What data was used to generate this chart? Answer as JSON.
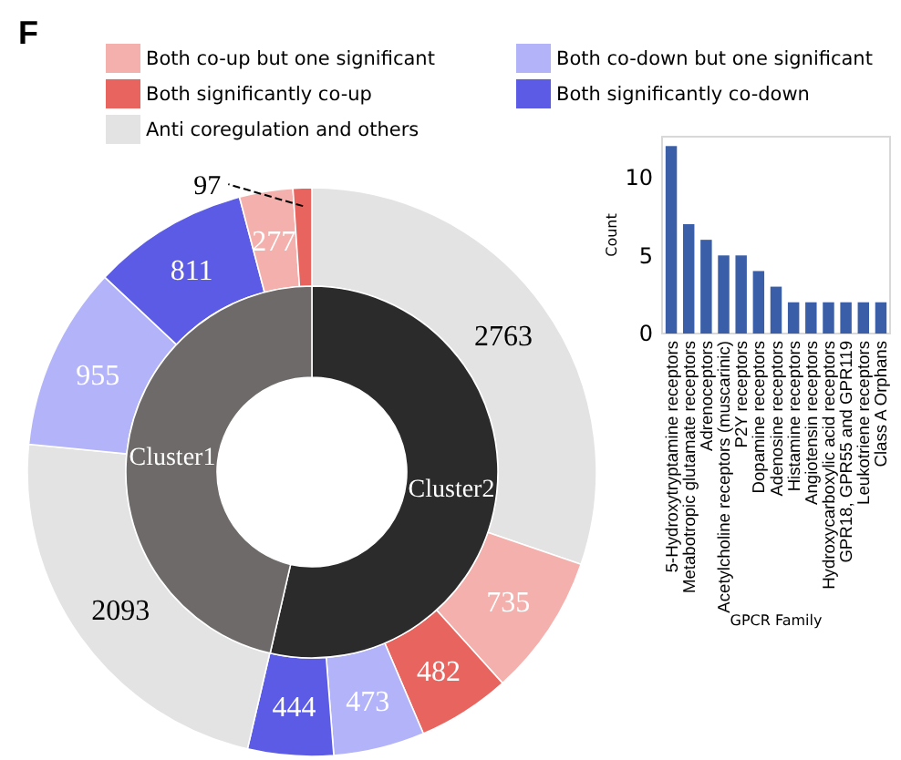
{
  "chart_data": [
    {
      "type": "donut",
      "annotations": [
        "F"
      ],
      "legend": "top",
      "data_labels": true,
      "categories": [
        "Anti coregulation and others",
        "Both co-up but one significant",
        "Both significantly co-up",
        "Both co-down but one significant",
        "Both significantly co-down",
        null,
        null,
        null,
        null,
        null
      ],
      "values": [
        2763,
        735,
        482,
        473,
        444,
        2093,
        955,
        811,
        277,
        97
      ],
      "colors": [
        "#e3e3e3",
        "#f4b0ac",
        "#e8655f",
        "#b3b3fa",
        "#5b5be6",
        "#e3e3e3",
        "#b3b3fa",
        "#5b5be6",
        "#f4b0ac",
        "#e8655f"
      ]
    },
    {
      "type": "donut",
      "categories": [
        "Cluster2",
        "Cluster1"
      ],
      "values": [
        53.6,
        46.4
      ],
      "colors": [
        "#2b2b2b",
        "#6e6a69"
      ]
    },
    {
      "type": "bar",
      "xlabel": "GPCR Family",
      "ylabel": "Count",
      "color": "#3a5fa8",
      "ylim": [
        0,
        12.6
      ],
      "yticks": [
        0,
        5,
        10
      ],
      "grid": false,
      "categories": [
        "5-Hydroxytryptamine receptors",
        "Metabotropic glutamate receptors",
        "Adrenoceptors",
        "Acetylcholine receptors (muscarinic)",
        "P2Y receptors",
        "Dopamine receptors",
        "Adenosine receptors",
        "Histamine receptors",
        "Angiotensin receptors",
        "Hydroxycarboxylic acid receptors",
        "GPR18, GPR55 and GPR119",
        "Leukotriene receptors",
        "Class A Orphans"
      ],
      "values": [
        12,
        7,
        6,
        5,
        5,
        4,
        3,
        2,
        2,
        2,
        2,
        2,
        2
      ]
    }
  ]
}
